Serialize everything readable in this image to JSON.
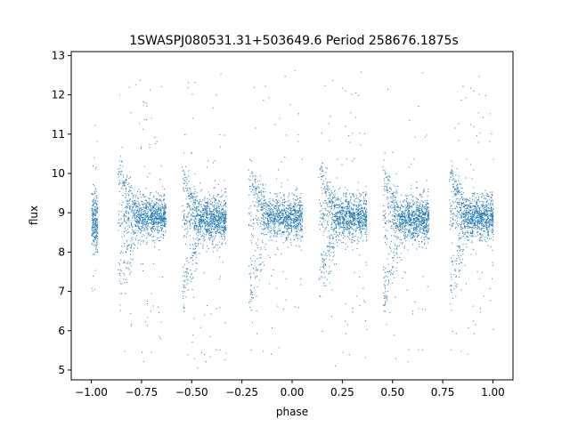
{
  "chart_data": {
    "type": "scatter",
    "title": "1SWASPJ080531.31+503649.6 Period 258676.1875s",
    "xlabel": "phase",
    "ylabel": "flux",
    "xlim": [
      -1.1,
      1.1
    ],
    "ylim": [
      4.75,
      13.1
    ],
    "xticks": [
      -1.0,
      -0.75,
      -0.5,
      -0.25,
      0.0,
      0.25,
      0.5,
      0.75,
      1.0
    ],
    "xtick_labels": [
      "−1.00",
      "−0.75",
      "−0.50",
      "−0.25",
      "0.00",
      "0.25",
      "0.50",
      "0.75",
      "1.00"
    ],
    "yticks": [
      5,
      6,
      7,
      8,
      9,
      10,
      11,
      12,
      13
    ],
    "ytick_labels": [
      "5",
      "6",
      "7",
      "8",
      "9",
      "10",
      "11",
      "12",
      "13"
    ],
    "grid": false,
    "legend": "none",
    "marker_color": "#1f77b4",
    "series": [
      {
        "segments": [
          {
            "phase_range": [
              -1.0,
              -0.97
            ],
            "flux_center": 8.8,
            "spread": 0.35
          },
          {
            "phase_range": [
              -0.87,
              -0.63
            ],
            "upper_start": 10.1,
            "lower_start": 7.2,
            "converge": 8.9
          },
          {
            "phase_range": [
              -0.55,
              -0.33
            ],
            "upper_start": 10.0,
            "lower_start": 6.9,
            "converge": 8.85
          },
          {
            "phase_range": [
              -0.22,
              0.05
            ],
            "upper_start": 10.0,
            "lower_start": 7.0,
            "converge": 8.9
          },
          {
            "phase_range": [
              0.13,
              0.37
            ],
            "upper_start": 10.1,
            "lower_start": 7.2,
            "converge": 8.9
          },
          {
            "phase_range": [
              0.45,
              0.68
            ],
            "upper_start": 10.0,
            "lower_start": 6.9,
            "converge": 8.85
          },
          {
            "phase_range": [
              0.78,
              1.0
            ],
            "upper_start": 10.0,
            "lower_start": 7.0,
            "converge": 8.9
          }
        ]
      }
    ]
  }
}
